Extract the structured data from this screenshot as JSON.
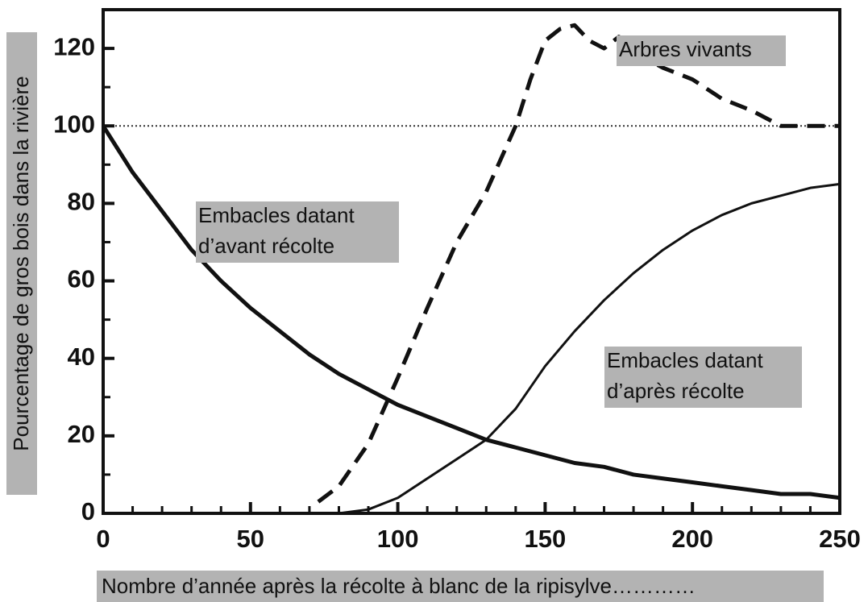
{
  "chart_data": {
    "type": "line",
    "xlabel": "Nombre d’année après la récolte à blanc de la ripisylve…………",
    "ylabel": "Pourcentage de gros bois dans la rivière",
    "xlim": [
      0,
      250
    ],
    "ylim": [
      0,
      130
    ],
    "xticks": [
      0,
      50,
      100,
      150,
      200,
      250
    ],
    "yticks": [
      0,
      20,
      40,
      60,
      80,
      100,
      120
    ],
    "minor_xticks": [
      10,
      20,
      30,
      40,
      60,
      70,
      80,
      90,
      110,
      120,
      130,
      140,
      160,
      170,
      180,
      190,
      210,
      220,
      230,
      240
    ],
    "minor_yticks": [
      10,
      30,
      50,
      70,
      90,
      110
    ],
    "hline": 100,
    "series": [
      {
        "name": "Embacles datant d’avant récolte",
        "color": "#111111",
        "style": "solid",
        "x": [
          0,
          10,
          20,
          30,
          40,
          50,
          60,
          70,
          80,
          90,
          100,
          110,
          120,
          130,
          140,
          150,
          160,
          170,
          180,
          190,
          200,
          210,
          220,
          230,
          240,
          250
        ],
        "values": [
          100,
          88,
          78,
          68,
          60,
          53,
          47,
          41,
          36,
          32,
          28,
          25,
          22,
          19,
          17,
          15,
          13,
          12,
          10,
          9,
          8,
          7,
          6,
          5,
          5,
          4
        ]
      },
      {
        "name": "Embacles datant d’après récolte",
        "color": "#111111",
        "style": "thin",
        "x": [
          0,
          10,
          20,
          30,
          40,
          50,
          60,
          70,
          80,
          90,
          100,
          110,
          120,
          130,
          140,
          150,
          160,
          170,
          180,
          190,
          200,
          210,
          220,
          230,
          240,
          250
        ],
        "values": [
          0,
          0,
          0,
          0,
          0,
          0,
          0,
          0,
          0,
          1,
          4,
          9,
          14,
          19,
          27,
          38,
          47,
          55,
          62,
          68,
          73,
          77,
          80,
          82,
          84,
          85
        ]
      },
      {
        "name": "Arbres vivants",
        "color": "#111111",
        "style": "dashed",
        "x": [
          73,
          80,
          90,
          100,
          110,
          120,
          130,
          140,
          145,
          150,
          155,
          160,
          165,
          170,
          175,
          180,
          185,
          190,
          200,
          210,
          220,
          225,
          230,
          250
        ],
        "values": [
          3,
          7,
          18,
          35,
          53,
          70,
          83,
          100,
          112,
          122,
          125,
          126,
          122,
          120,
          123,
          121,
          117,
          115,
          112,
          107,
          104,
          102,
          100,
          100
        ]
      }
    ],
    "annotations": [
      {
        "lines": [
          "Arbres vivants"
        ]
      },
      {
        "lines": [
          "Embacles datant",
          "d’avant récolte"
        ]
      },
      {
        "lines": [
          "Embacles datant",
          "d’après récolte"
        ]
      }
    ]
  }
}
